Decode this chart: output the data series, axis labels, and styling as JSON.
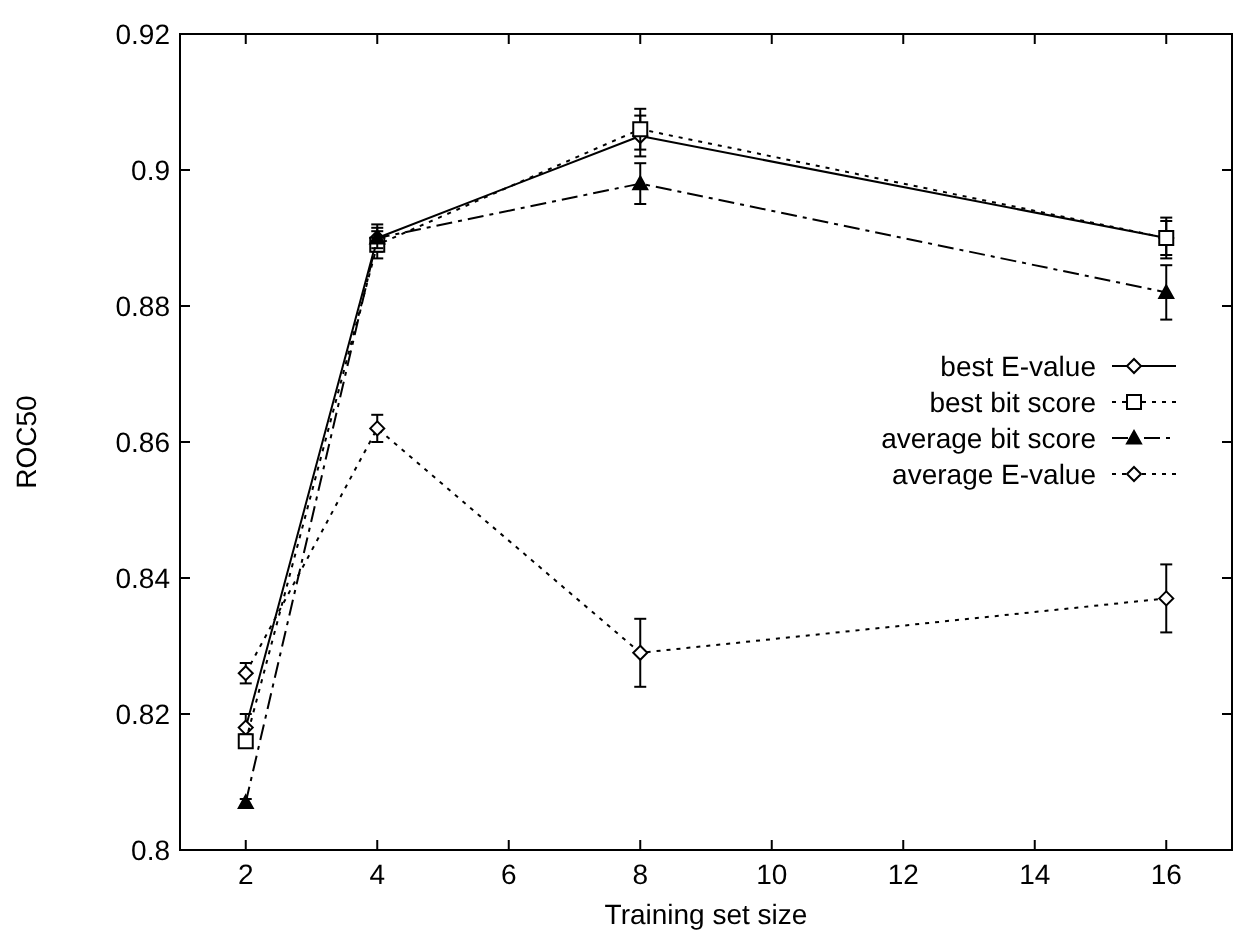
{
  "chart_data": {
    "type": "line",
    "xlabel": "Training set size",
    "ylabel": "ROC50",
    "x": [
      2,
      4,
      8,
      16
    ],
    "xlim": [
      1,
      17
    ],
    "xticks": [
      2,
      4,
      6,
      8,
      10,
      12,
      14,
      16
    ],
    "ylim": [
      0.8,
      0.92
    ],
    "yticks": [
      0.8,
      0.82,
      0.84,
      0.86,
      0.88,
      0.9,
      0.92
    ],
    "legend": "right",
    "grid": false,
    "series": [
      {
        "name": "best E-value",
        "color": "#000000",
        "marker": "diamond",
        "line_style": "solid",
        "values": [
          0.818,
          0.89,
          0.905,
          0.89
        ],
        "errors": [
          0.002,
          0.002,
          0.003,
          0.003
        ]
      },
      {
        "name": "best bit score",
        "color": "#000000",
        "marker": "square",
        "line_style": "dotted",
        "values": [
          0.816,
          0.889,
          0.906,
          0.89
        ],
        "errors": [
          0.001,
          0.002,
          0.003,
          0.0025
        ]
      },
      {
        "name": "average bit score",
        "color": "#000000",
        "marker": "triangle",
        "line_style": "dashed",
        "values": [
          0.807,
          0.89,
          0.898,
          0.882
        ],
        "errors": [
          0.0005,
          0.0015,
          0.003,
          0.004
        ]
      },
      {
        "name": "average E-value",
        "color": "#000000",
        "marker": "diamond",
        "line_style": "dotted",
        "values": [
          0.826,
          0.862,
          0.829,
          0.837
        ],
        "errors": [
          0.0015,
          0.002,
          0.005,
          0.005
        ]
      }
    ]
  }
}
